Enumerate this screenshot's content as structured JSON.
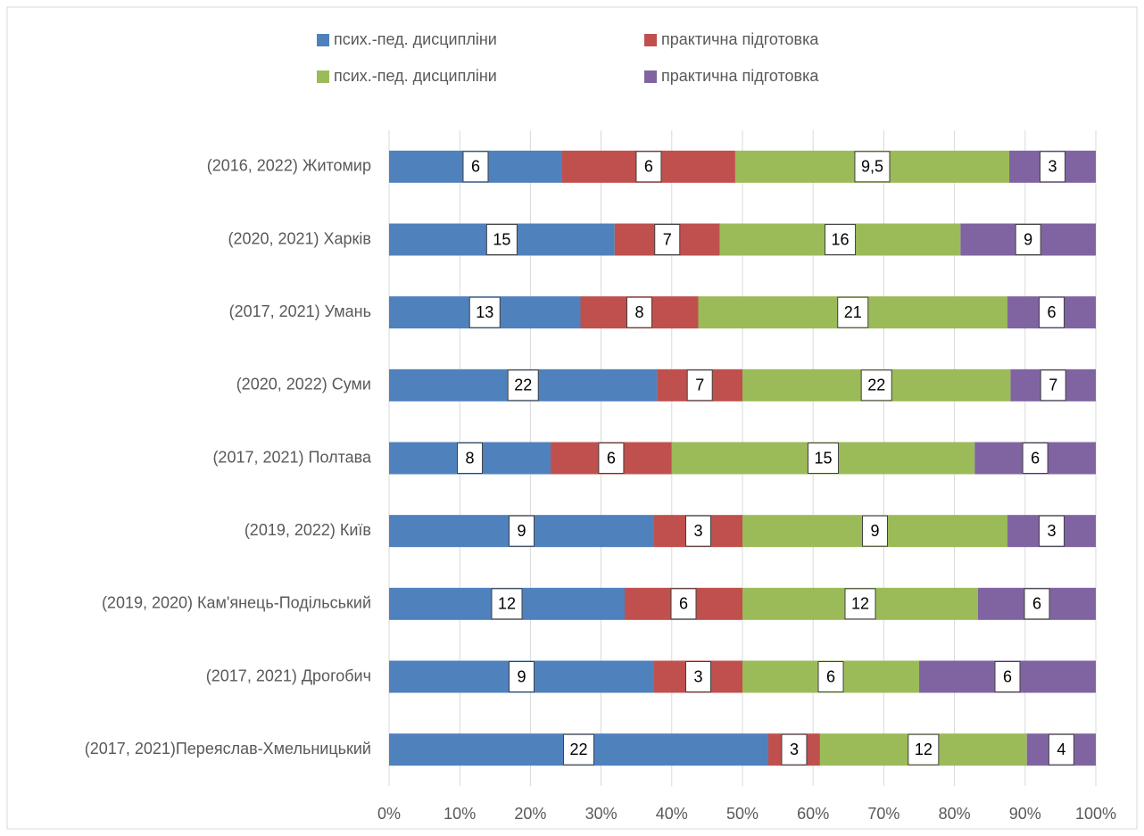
{
  "chart_data": {
    "type": "bar",
    "orientation": "horizontal",
    "stack": "percent",
    "categories": [
      "(2016, 2022) Житомир",
      "(2020, 2021) Харків",
      "(2017, 2021) Умань",
      "(2020, 2022) Суми",
      "(2017, 2021) Полтава",
      "(2019, 2022) Київ",
      "(2019, 2020) Кам'янець-Подільський",
      "(2017, 2021) Дрогобич",
      "(2017, 2021)Переяслав-Хмельницький"
    ],
    "series": [
      {
        "name": "псих.-пед. дисципліни",
        "color": "#4f81bd",
        "values": [
          6,
          15,
          13,
          22,
          8,
          9,
          12,
          9,
          22
        ]
      },
      {
        "name": "практична підготовка",
        "color": "#c0504d",
        "values": [
          6,
          7,
          8,
          7,
          6,
          3,
          6,
          3,
          3
        ]
      },
      {
        "name": "псих.-пед. дисципліни",
        "color": "#9bbb59",
        "values": [
          9.5,
          16,
          21,
          22,
          15,
          9,
          12,
          6,
          12
        ],
        "value_labels": [
          "9,5",
          "16",
          "21",
          "22",
          "15",
          "9",
          "12",
          "6",
          "12"
        ]
      },
      {
        "name": "практична підготовка",
        "color": "#8064a2",
        "values": [
          3,
          9,
          6,
          7,
          6,
          3,
          6,
          6,
          4
        ]
      }
    ],
    "xlim": [
      0,
      100
    ],
    "xticks": [
      {
        "value": 0,
        "label": "0%"
      },
      {
        "value": 10,
        "label": "10%"
      },
      {
        "value": 20,
        "label": "20%"
      },
      {
        "value": 30,
        "label": "30%"
      },
      {
        "value": 40,
        "label": "40%"
      },
      {
        "value": 50,
        "label": "50%"
      },
      {
        "value": 60,
        "label": "60%"
      },
      {
        "value": 70,
        "label": "70%"
      },
      {
        "value": 80,
        "label": "80%"
      },
      {
        "value": 90,
        "label": "90%"
      },
      {
        "value": 100,
        "label": "100%"
      }
    ],
    "grid": true,
    "legend": "top"
  }
}
